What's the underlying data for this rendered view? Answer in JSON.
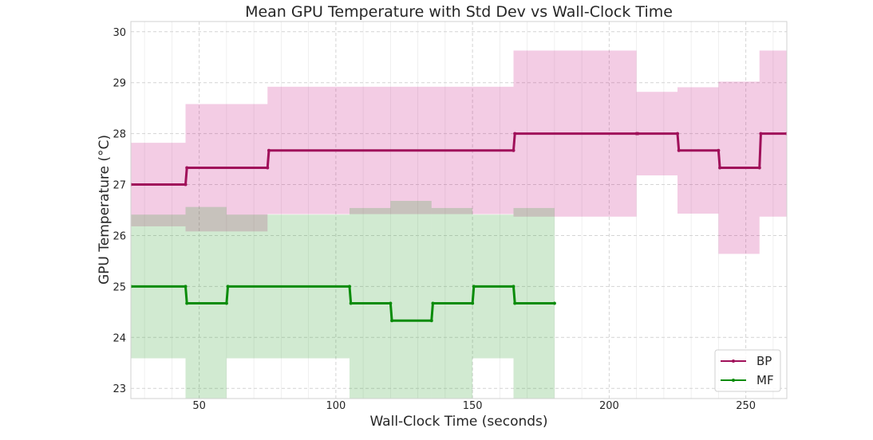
{
  "chart_data": {
    "type": "line",
    "title": "Mean GPU Temperature with Std Dev vs Wall-Clock Time",
    "xlabel": "Wall-Clock Time (seconds)",
    "ylabel": "GPU Temperature (°C)",
    "xlim": [
      25,
      265
    ],
    "ylim": [
      22.8,
      30.2
    ],
    "xticks": [
      50,
      100,
      150,
      200,
      250
    ],
    "yticks": [
      23,
      24,
      25,
      26,
      27,
      28,
      29,
      30
    ],
    "grid": true,
    "legend_placement": "lower-right",
    "series": [
      {
        "name": "BP",
        "color": "#a0105a",
        "fill_color": "#c71585",
        "segments": [
          {
            "x": [
              25,
              45
            ],
            "mean": 27.0,
            "std": 0.82
          },
          {
            "x": [
              45,
              75
            ],
            "mean": 27.33,
            "std": 1.25
          },
          {
            "x": [
              75,
              165
            ],
            "mean": 27.67,
            "std": 1.25
          },
          {
            "x": [
              165,
              210
            ],
            "mean": 28.0,
            "std": 1.63
          },
          {
            "x": [
              210,
              225
            ],
            "mean": 28.0,
            "std": 0.82
          },
          {
            "x": [
              225,
              240
            ],
            "mean": 27.67,
            "std": 1.24
          },
          {
            "x": [
              240,
              255
            ],
            "mean": 27.33,
            "std": 1.69
          },
          {
            "x": [
              255,
              265
            ],
            "mean": 28.0,
            "std": 1.63
          }
        ]
      },
      {
        "name": "MF",
        "color": "#0a8c0a",
        "fill_color": "#2ca02c",
        "segments": [
          {
            "x": [
              25,
              45
            ],
            "mean": 25.0,
            "std": 1.41
          },
          {
            "x": [
              45,
              60
            ],
            "mean": 24.67,
            "std": 1.89
          },
          {
            "x": [
              60,
              105
            ],
            "mean": 25.0,
            "std": 1.41
          },
          {
            "x": [
              105,
              120
            ],
            "mean": 24.67,
            "std": 1.87
          },
          {
            "x": [
              120,
              135
            ],
            "mean": 24.33,
            "std": 2.35
          },
          {
            "x": [
              135,
              150
            ],
            "mean": 24.67,
            "std": 1.87
          },
          {
            "x": [
              150,
              165
            ],
            "mean": 25.0,
            "std": 1.41
          },
          {
            "x": [
              165,
              180
            ],
            "mean": 24.67,
            "std": 1.87
          }
        ]
      }
    ]
  }
}
